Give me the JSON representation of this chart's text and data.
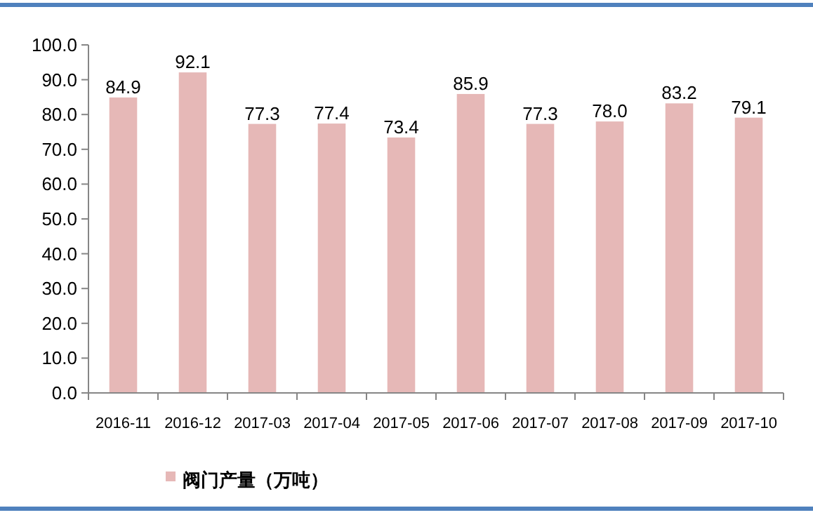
{
  "chart_data": {
    "type": "bar",
    "categories": [
      "2016-11",
      "2016-12",
      "2017-03",
      "2017-04",
      "2017-05",
      "2017-06",
      "2017-07",
      "2017-08",
      "2017-09",
      "2017-10"
    ],
    "series": [
      {
        "name": "阀门产量（万吨）",
        "color": "#e6b8b7",
        "values": [
          84.9,
          92.1,
          77.3,
          77.4,
          73.4,
          85.9,
          77.3,
          78.0,
          83.2,
          79.1
        ],
        "value_labels": [
          "84.9",
          "92.1",
          "77.3",
          "77.4",
          "73.4",
          "85.9",
          "77.3",
          "78.0",
          "83.2",
          "79.1"
        ]
      }
    ],
    "ylim": [
      0,
      100
    ],
    "yticks": [
      {
        "value": 0,
        "label": "0.0"
      },
      {
        "value": 10,
        "label": "10.0"
      },
      {
        "value": 20,
        "label": "20.0"
      },
      {
        "value": 30,
        "label": "30.0"
      },
      {
        "value": 40,
        "label": "40.0"
      },
      {
        "value": 50,
        "label": "50.0"
      },
      {
        "value": 60,
        "label": "60.0"
      },
      {
        "value": 70,
        "label": "70.0"
      },
      {
        "value": 80,
        "label": "80.0"
      },
      {
        "value": 90,
        "label": "90.0"
      },
      {
        "value": 100,
        "label": "100.0"
      }
    ],
    "grid": false,
    "legend": "bottom"
  }
}
